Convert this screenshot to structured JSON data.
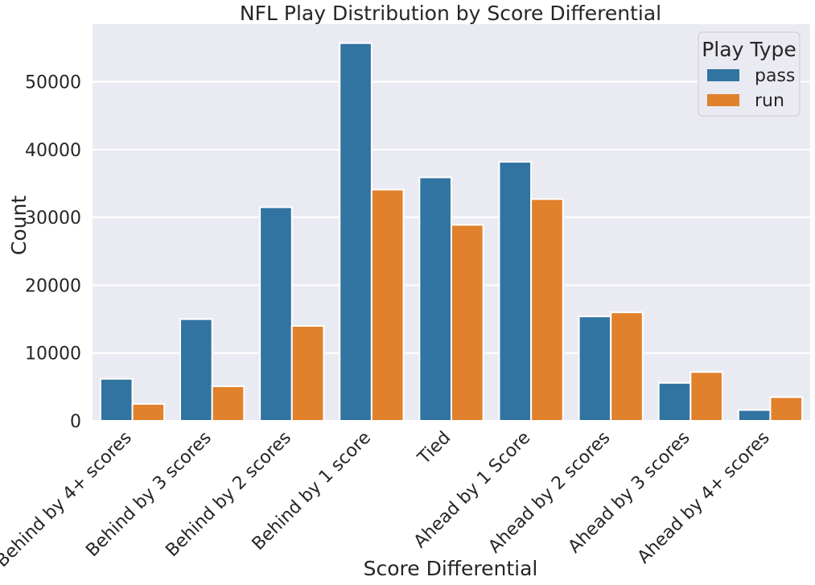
{
  "chart_data": {
    "type": "bar",
    "title": "NFL Play Distribution by Score Differential",
    "xlabel": "Score Differential",
    "ylabel": "Count",
    "ylim": [
      0,
      58500
    ],
    "yticks": [
      0,
      10000,
      20000,
      30000,
      40000,
      50000
    ],
    "grid": true,
    "legend": {
      "title": "Play Type",
      "placement": "top-right"
    },
    "categories": [
      "Behind by 4+ scores",
      "Behind by 3 scores",
      "Behind by 2 scores",
      "Behind by 1 score",
      "Tied",
      "Ahead by 1 Score",
      "Ahead by 2 scores",
      "Ahead by 3 scores",
      "Ahead by 4+ scores"
    ],
    "series": [
      {
        "name": "pass",
        "color": "#3274a1",
        "values": [
          6200,
          15000,
          31500,
          55700,
          35900,
          38200,
          15400,
          5600,
          1600
        ]
      },
      {
        "name": "run",
        "color": "#e1812c",
        "values": [
          2500,
          5100,
          14000,
          34100,
          28900,
          32700,
          16000,
          7200,
          3500
        ]
      }
    ]
  }
}
